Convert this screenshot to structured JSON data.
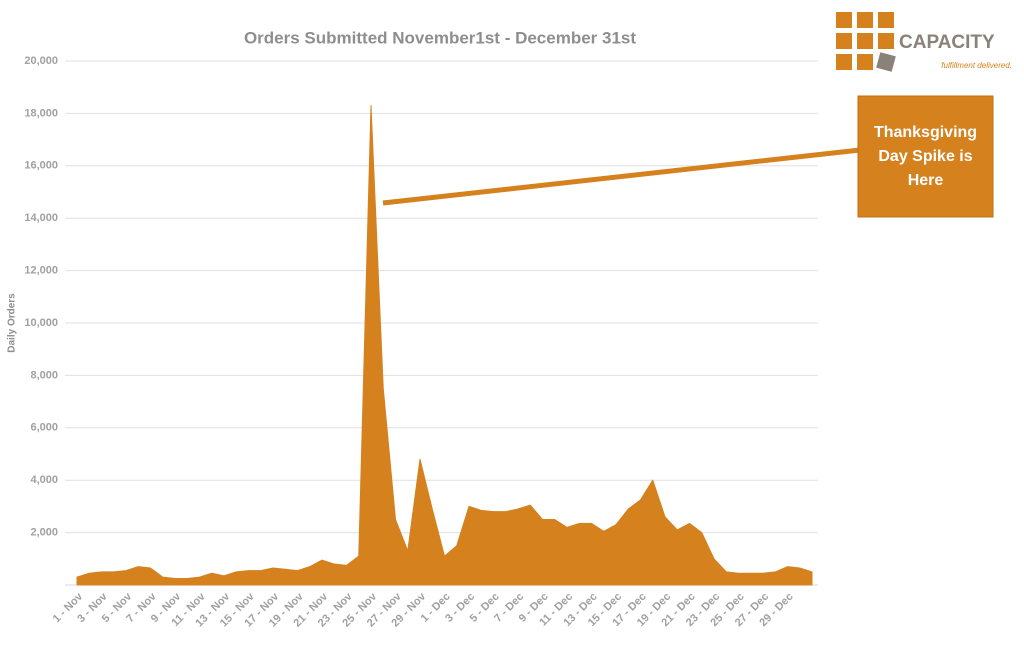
{
  "chart_data": {
    "type": "area",
    "title": "Orders Submitted November1st - December 31st",
    "y_label": "Daily Orders",
    "categories": [
      "1 - Nov",
      null,
      "3 - Nov",
      null,
      "5 - Nov",
      null,
      "7 - Nov",
      null,
      "9 - Nov",
      null,
      "11 - Nov",
      null,
      "13 - Nov",
      null,
      "15 - Nov",
      null,
      "17 - Nov",
      null,
      "19 - Nov",
      null,
      "21 - Nov",
      null,
      "23 - Nov",
      null,
      "25 - Nov",
      null,
      "27 - Nov",
      null,
      "29 - Nov",
      null,
      "1 - Dec",
      null,
      "3 - Dec",
      null,
      "5 - Dec",
      null,
      "7 - Dec",
      null,
      "9 - Dec",
      null,
      "11 - Dec",
      null,
      "13 - Dec",
      null,
      "15 - Dec",
      null,
      "17 - Dec",
      null,
      "19 - Dec",
      null,
      "21 - Dec",
      null,
      "23 - Dec",
      null,
      "25 - Dec",
      null,
      "27 - Dec",
      null,
      "29 - Dec",
      null,
      null
    ],
    "values": [
      300,
      450,
      500,
      500,
      550,
      700,
      650,
      300,
      250,
      250,
      300,
      450,
      350,
      500,
      550,
      550,
      650,
      600,
      550,
      700,
      950,
      800,
      750,
      1100,
      18300,
      7500,
      2500,
      1300,
      4800,
      2900,
      1100,
      1500,
      3000,
      2850,
      2800,
      2800,
      2900,
      3050,
      2500,
      2500,
      2200,
      2350,
      2350,
      2050,
      2300,
      2900,
      3250,
      4000,
      2600,
      2100,
      2350,
      2000,
      1000,
      500,
      450,
      450,
      450,
      500,
      700,
      650,
      500
    ],
    "color": "#d4811e",
    "ylim": [
      0,
      20000
    ],
    "yticks": [
      {
        "value": 2000,
        "label": "2,000"
      },
      {
        "value": 4000,
        "label": "4,000"
      },
      {
        "value": 6000,
        "label": "6,000"
      },
      {
        "value": 8000,
        "label": "8,000"
      },
      {
        "value": 10000,
        "label": "10,000"
      },
      {
        "value": 12000,
        "label": "12,000"
      },
      {
        "value": 14000,
        "label": "14,000"
      },
      {
        "value": 16000,
        "label": "16,000"
      },
      {
        "value": 18000,
        "label": "18,000"
      },
      {
        "value": 20000,
        "label": "20,000"
      }
    ],
    "grid": true,
    "annotation": "Thanksgiving Day Spike is Here"
  },
  "logo": {
    "name": "CAPACITY",
    "tagline": "fulfillment delivered."
  }
}
